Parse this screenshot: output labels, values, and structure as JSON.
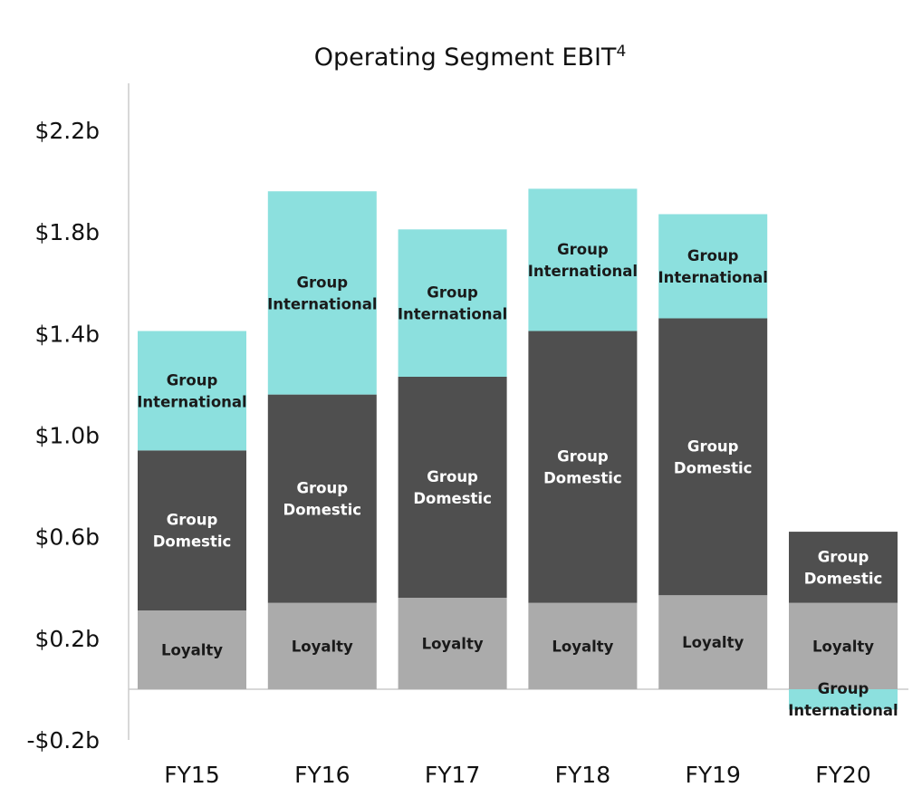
{
  "chart_data": {
    "type": "bar",
    "stacked": true,
    "title": "Operating Segment EBIT",
    "title_superscript": "4",
    "xlabel": "",
    "ylabel": "",
    "ylim": [
      -0.2,
      2.4
    ],
    "y_ticks": [
      {
        "value": 2.2,
        "label": "$2.2b"
      },
      {
        "value": 1.8,
        "label": "$1.8b"
      },
      {
        "value": 1.4,
        "label": "$1.4b"
      },
      {
        "value": 1.0,
        "label": "$1.0b"
      },
      {
        "value": 0.6,
        "label": "$0.6b"
      },
      {
        "value": 0.2,
        "label": "$0.2b"
      },
      {
        "value": -0.2,
        "label": "-$0.2b"
      }
    ],
    "grid": false,
    "categories": [
      "FY15",
      "FY16",
      "FY17",
      "FY18",
      "FY19",
      "FY20"
    ],
    "series": [
      {
        "key": "loyalty",
        "label_lines": [
          "Loyalty"
        ],
        "color": "#ababab",
        "text_color": "#1a1a1a",
        "values": [
          0.31,
          0.34,
          0.36,
          0.34,
          0.37,
          0.34
        ]
      },
      {
        "key": "domestic",
        "label_lines": [
          "Group",
          "Domestic"
        ],
        "color": "#4f4f4f",
        "text_color": "#ffffff",
        "values": [
          0.63,
          0.82,
          0.87,
          1.07,
          1.09,
          0.28
        ]
      },
      {
        "key": "international",
        "label_lines": [
          "Group",
          "International"
        ],
        "color": "#8ce0de",
        "text_color": "#1a1a1a",
        "values": [
          0.47,
          0.8,
          0.58,
          0.56,
          0.41,
          -0.08
        ]
      }
    ]
  }
}
